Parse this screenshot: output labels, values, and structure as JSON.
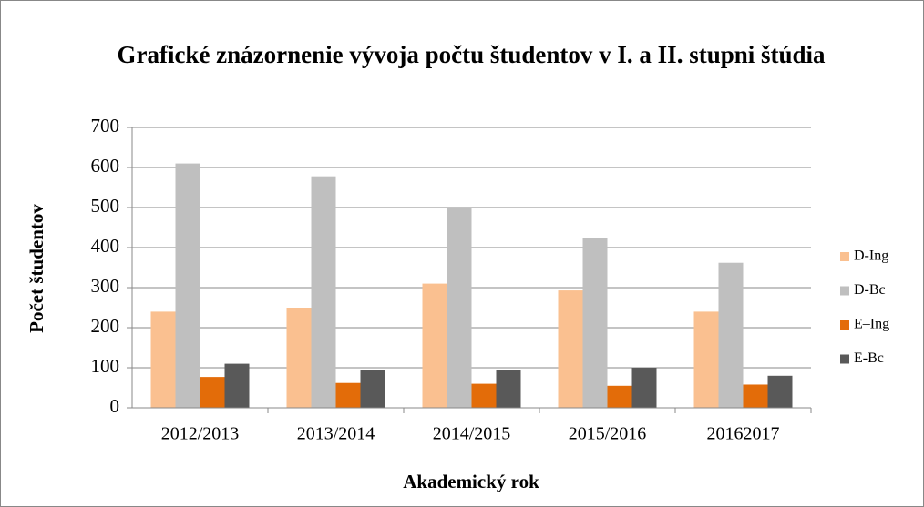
{
  "chart_data": {
    "type": "bar",
    "title": "Grafické znázornenie vývoja počtu študentov v I. a II. stupni štúdia",
    "x_label": "Akademický rok",
    "y_label": "Počet študentov",
    "categories": [
      "2012/2013",
      "2013/2014",
      "2014/2015",
      "2015/2016",
      "20162017"
    ],
    "series": [
      {
        "name": "D-Ing",
        "color": "#fac090",
        "values": [
          240,
          250,
          310,
          293,
          240
        ]
      },
      {
        "name": "D-Bc",
        "color": "#bfbfbf",
        "values": [
          610,
          578,
          500,
          425,
          362
        ]
      },
      {
        "name": "E–Ing",
        "color": "#e36c09",
        "values": [
          77,
          62,
          60,
          55,
          58
        ]
      },
      {
        "name": "E-Bc",
        "color": "#595959",
        "values": [
          110,
          95,
          95,
          100,
          80
        ]
      }
    ],
    "ylim": [
      0,
      700
    ],
    "yticks": [
      0,
      100,
      200,
      300,
      400,
      500,
      600,
      700
    ],
    "grid": true,
    "legend": "right"
  }
}
